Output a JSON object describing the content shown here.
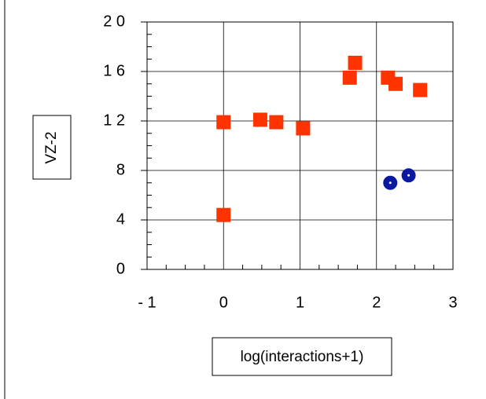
{
  "chart_data": {
    "type": "scatter",
    "title": "",
    "xlabel": "log(interactions+1)",
    "ylabel": "VZ-2",
    "xlim": [
      -1,
      3
    ],
    "ylim": [
      0,
      20
    ],
    "xticks": [
      -1,
      0,
      1,
      2,
      3
    ],
    "xtick_labels": [
      "- 1",
      "0",
      "1",
      "2",
      "3"
    ],
    "yticks": [
      0,
      4,
      8,
      12,
      16,
      20
    ],
    "ytick_labels": [
      "0",
      "4",
      "8",
      "1 2",
      "1 6",
      "2 0"
    ],
    "grid": true,
    "series": [
      {
        "marker": "square",
        "color": "#ff3300",
        "points": [
          {
            "x": 0.0,
            "y": 11.9
          },
          {
            "x": 0.0,
            "y": 4.4
          },
          {
            "x": 0.48,
            "y": 12.1
          },
          {
            "x": 0.69,
            "y": 11.9
          },
          {
            "x": 1.04,
            "y": 11.4
          },
          {
            "x": 1.65,
            "y": 15.5
          },
          {
            "x": 1.72,
            "y": 16.7
          },
          {
            "x": 2.15,
            "y": 15.5
          },
          {
            "x": 2.25,
            "y": 15.0
          },
          {
            "x": 2.57,
            "y": 14.5
          }
        ]
      },
      {
        "marker": "circle",
        "color": "#0a1aa0",
        "points": [
          {
            "x": 2.18,
            "y": 7.0
          },
          {
            "x": 2.42,
            "y": 7.6
          }
        ]
      }
    ]
  }
}
